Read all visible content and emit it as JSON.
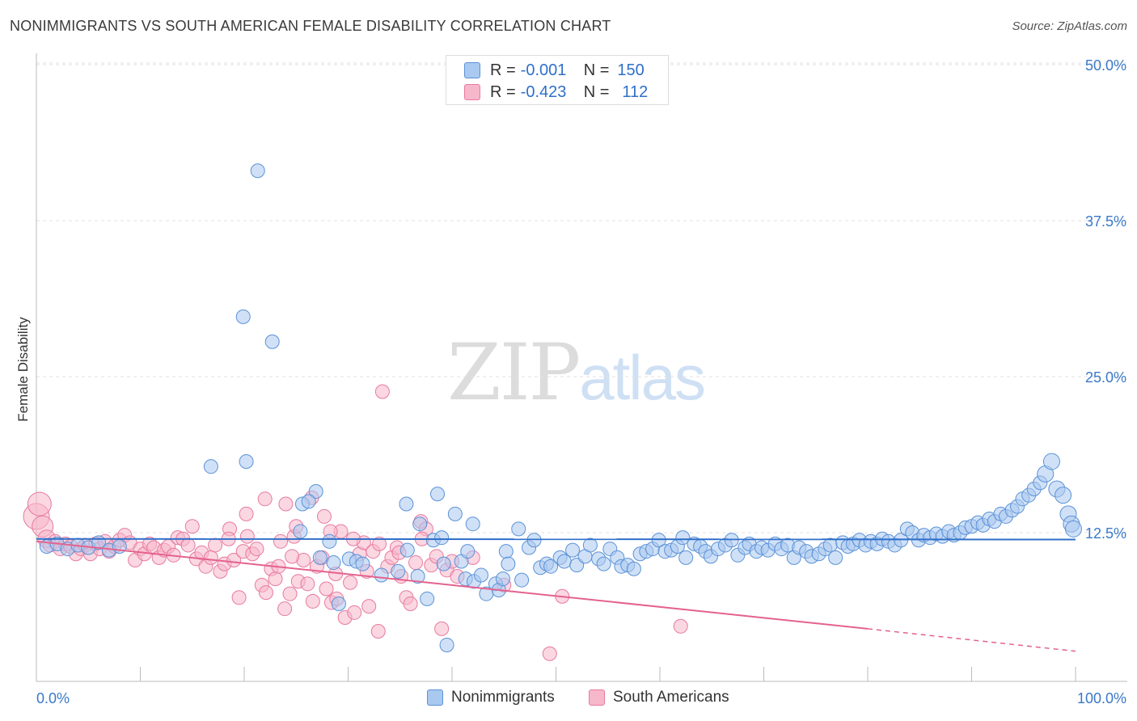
{
  "title": "NONIMMIGRANTS VS SOUTH AMERICAN FEMALE DISABILITY CORRELATION CHART",
  "source": "Source: ZipAtlas.com",
  "colors": {
    "blue_fill": "#a9c9f0",
    "blue_stroke": "#5b92d6",
    "blue_line": "#2f6fc9",
    "pink_fill": "#f7b7cb",
    "pink_stroke": "#e77aa0",
    "pink_line": "#e4628e",
    "axis_text": "#3b78c9",
    "grid": "#e2e2e2"
  },
  "legend_top": {
    "rows": [
      {
        "label": "R =",
        "r_value": "-0.001",
        "n_label": "N =",
        "n_value": "150"
      },
      {
        "label": "R =",
        "r_value": "-0.423",
        "n_label": "N =",
        "n_value": "112"
      }
    ]
  },
  "legend_bottom": [
    "Nonimmigrants",
    "South Americans"
  ],
  "watermark": {
    "zip": "ZIP",
    "atlas": "atlas"
  },
  "chart_data": {
    "type": "scatter",
    "title": "NONIMMIGRANTS VS SOUTH AMERICAN FEMALE DISABILITY CORRELATION CHART",
    "xlabel": "",
    "ylabel": "Female Disability",
    "xlim": [
      0,
      100
    ],
    "ylim": [
      0,
      50
    ],
    "x_tick_labels": [
      "0.0%",
      "100.0%"
    ],
    "y_ticks": [
      12.5,
      25.0,
      37.5,
      50.0
    ],
    "y_tick_labels": [
      "12.5%",
      "25.0%",
      "37.5%",
      "50.0%"
    ],
    "legend": [
      "Nonimmigrants",
      "South Americans"
    ],
    "series": [
      {
        "name": "Nonimmigrants",
        "R": -0.001,
        "N": 150,
        "trend": {
          "x": [
            0,
            100
          ],
          "y": [
            12.0,
            11.95
          ]
        },
        "points": [
          [
            1,
            11.4
          ],
          [
            2,
            11.6
          ],
          [
            3,
            11.2
          ],
          [
            4,
            11.5
          ],
          [
            5,
            11.3
          ],
          [
            6,
            11.7
          ],
          [
            7,
            11.1
          ],
          [
            8,
            11.4
          ],
          [
            16.8,
            17.8
          ],
          [
            21.3,
            41.5
          ],
          [
            19.9,
            29.8
          ],
          [
            22.7,
            27.8
          ],
          [
            20.2,
            18.2
          ],
          [
            26.9,
            15.8
          ],
          [
            28.2,
            11.8
          ],
          [
            25.6,
            14.8
          ],
          [
            25.4,
            12.6
          ],
          [
            26.2,
            15.0
          ],
          [
            27.3,
            10.5
          ],
          [
            28.6,
            10.1
          ],
          [
            29.1,
            6.8
          ],
          [
            30.1,
            10.4
          ],
          [
            30.8,
            10.2
          ],
          [
            31.4,
            10.0
          ],
          [
            33.2,
            9.1
          ],
          [
            34.8,
            9.4
          ],
          [
            35.7,
            11.1
          ],
          [
            36.7,
            9.0
          ],
          [
            36.9,
            13.2
          ],
          [
            35.6,
            14.8
          ],
          [
            37.6,
            7.2
          ],
          [
            38.2,
            11.9
          ],
          [
            39.0,
            12.1
          ],
          [
            39.2,
            10.0
          ],
          [
            38.6,
            15.6
          ],
          [
            39.5,
            3.5
          ],
          [
            40.3,
            14.0
          ],
          [
            40.9,
            10.2
          ],
          [
            41.5,
            11.0
          ],
          [
            41.3,
            8.8
          ],
          [
            42.1,
            8.6
          ],
          [
            42.0,
            13.2
          ],
          [
            42.8,
            9.1
          ],
          [
            43.3,
            7.6
          ],
          [
            44.2,
            8.4
          ],
          [
            44.5,
            7.9
          ],
          [
            44.9,
            8.8
          ],
          [
            45.2,
            11.0
          ],
          [
            45.4,
            10.0
          ],
          [
            46.4,
            12.8
          ],
          [
            46.7,
            8.7
          ],
          [
            47.4,
            11.3
          ],
          [
            47.9,
            11.9
          ],
          [
            48.5,
            9.7
          ],
          [
            49.1,
            10.0
          ],
          [
            49.5,
            9.8
          ],
          [
            50.4,
            10.5
          ],
          [
            50.8,
            10.2
          ],
          [
            51.6,
            11.1
          ],
          [
            52.0,
            9.9
          ],
          [
            52.8,
            10.6
          ],
          [
            53.3,
            11.5
          ],
          [
            54.1,
            10.4
          ],
          [
            54.6,
            10.0
          ],
          [
            55.2,
            11.2
          ],
          [
            55.9,
            10.5
          ],
          [
            56.3,
            9.8
          ],
          [
            56.9,
            9.9
          ],
          [
            57.5,
            9.6
          ],
          [
            58.1,
            10.8
          ],
          [
            58.7,
            11.0
          ],
          [
            59.3,
            11.2
          ],
          [
            59.9,
            11.9
          ],
          [
            60.5,
            11.0
          ],
          [
            61.1,
            11.1
          ],
          [
            61.7,
            11.4
          ],
          [
            62.2,
            12.1
          ],
          [
            62.5,
            10.5
          ],
          [
            63.3,
            11.6
          ],
          [
            63.9,
            11.4
          ],
          [
            64.4,
            11.0
          ],
          [
            64.9,
            10.6
          ],
          [
            65.6,
            11.2
          ],
          [
            66.3,
            11.5
          ],
          [
            66.9,
            11.9
          ],
          [
            67.5,
            10.7
          ],
          [
            68.2,
            11.3
          ],
          [
            68.6,
            11.6
          ],
          [
            69.3,
            11.0
          ],
          [
            69.8,
            11.3
          ],
          [
            70.4,
            11.1
          ],
          [
            71.1,
            11.6
          ],
          [
            71.7,
            11.2
          ],
          [
            72.3,
            11.5
          ],
          [
            72.9,
            10.5
          ],
          [
            73.4,
            11.3
          ],
          [
            74.1,
            11.0
          ],
          [
            74.6,
            10.6
          ],
          [
            75.3,
            10.8
          ],
          [
            75.9,
            11.2
          ],
          [
            76.4,
            11.5
          ],
          [
            76.9,
            10.5
          ],
          [
            77.6,
            11.7
          ],
          [
            78.1,
            11.4
          ],
          [
            78.6,
            11.6
          ],
          [
            79.2,
            11.9
          ],
          [
            79.8,
            11.5
          ],
          [
            80.3,
            11.8
          ],
          [
            80.9,
            11.6
          ],
          [
            81.4,
            12.0
          ],
          [
            82.0,
            11.8
          ],
          [
            82.6,
            11.5
          ],
          [
            83.2,
            11.9
          ],
          [
            83.8,
            12.8
          ],
          [
            84.3,
            12.5
          ],
          [
            84.9,
            11.9
          ],
          [
            85.4,
            12.3
          ],
          [
            86.0,
            12.1
          ],
          [
            86.6,
            12.4
          ],
          [
            87.2,
            12.2
          ],
          [
            87.8,
            12.6
          ],
          [
            88.3,
            12.3
          ],
          [
            88.9,
            12.5
          ],
          [
            89.4,
            12.9
          ],
          [
            90.0,
            13.0
          ],
          [
            90.6,
            13.3
          ],
          [
            91.1,
            13.1
          ],
          [
            91.7,
            13.6
          ],
          [
            92.2,
            13.4
          ],
          [
            92.8,
            14.0
          ],
          [
            93.3,
            13.8
          ],
          [
            93.9,
            14.3
          ],
          [
            94.4,
            14.6
          ],
          [
            94.9,
            15.2
          ],
          [
            95.5,
            15.5
          ],
          [
            96.0,
            16.0
          ],
          [
            96.6,
            16.5
          ],
          [
            97.1,
            17.2
          ],
          [
            97.7,
            18.2
          ],
          [
            98.2,
            16.0
          ],
          [
            98.8,
            15.5
          ],
          [
            99.3,
            14.0
          ],
          [
            99.6,
            13.2
          ],
          [
            99.8,
            12.8
          ]
        ]
      },
      {
        "name": "South Americans",
        "R": -0.423,
        "N": 112,
        "trend": {
          "x": [
            0,
            80
          ],
          "y": [
            11.8,
            4.8
          ]
        },
        "trend_dashed": {
          "x": [
            80,
            100
          ],
          "y": [
            4.8,
            3.0
          ]
        },
        "points": [
          [
            0,
            13.8
          ],
          [
            0.3,
            14.8
          ],
          [
            0.6,
            13.0
          ],
          [
            1.0,
            12.0
          ],
          [
            1.3,
            11.5
          ],
          [
            1.8,
            11.8
          ],
          [
            2.3,
            11.2
          ],
          [
            2.8,
            11.6
          ],
          [
            3.3,
            11.4
          ],
          [
            3.8,
            10.8
          ],
          [
            4.3,
            11.2
          ],
          [
            4.7,
            11.5
          ],
          [
            5.2,
            10.8
          ],
          [
            5.7,
            11.6
          ],
          [
            6.1,
            11.2
          ],
          [
            6.6,
            11.8
          ],
          [
            7.0,
            11.0
          ],
          [
            7.5,
            11.4
          ],
          [
            8.0,
            11.9
          ],
          [
            8.5,
            12.3
          ],
          [
            9.0,
            11.7
          ],
          [
            9.5,
            10.3
          ],
          [
            10.0,
            11.2
          ],
          [
            10.4,
            10.8
          ],
          [
            10.9,
            11.6
          ],
          [
            11.3,
            11.3
          ],
          [
            11.8,
            10.5
          ],
          [
            12.3,
            11.1
          ],
          [
            12.7,
            11.4
          ],
          [
            13.2,
            10.7
          ],
          [
            13.6,
            12.1
          ],
          [
            14.1,
            12.0
          ],
          [
            14.6,
            11.5
          ],
          [
            15.0,
            13.0
          ],
          [
            15.4,
            10.4
          ],
          [
            15.9,
            10.9
          ],
          [
            16.3,
            9.8
          ],
          [
            16.8,
            10.5
          ],
          [
            17.2,
            11.5
          ],
          [
            17.7,
            9.4
          ],
          [
            18.1,
            10.0
          ],
          [
            18.6,
            12.8
          ],
          [
            19.0,
            10.3
          ],
          [
            19.5,
            7.3
          ],
          [
            19.9,
            11.0
          ],
          [
            20.3,
            12.2
          ],
          [
            20.8,
            10.8
          ],
          [
            21.2,
            11.2
          ],
          [
            21.7,
            8.3
          ],
          [
            22.1,
            7.7
          ],
          [
            22.6,
            9.6
          ],
          [
            23.0,
            8.8
          ],
          [
            23.5,
            11.8
          ],
          [
            23.9,
            6.4
          ],
          [
            24.4,
            7.6
          ],
          [
            24.8,
            12.2
          ],
          [
            25.2,
            8.6
          ],
          [
            25.7,
            10.3
          ],
          [
            26.1,
            8.4
          ],
          [
            26.6,
            7.0
          ],
          [
            27.0,
            9.8
          ],
          [
            27.5,
            10.5
          ],
          [
            27.9,
            8.0
          ],
          [
            28.4,
            6.9
          ],
          [
            28.8,
            9.2
          ],
          [
            29.3,
            12.6
          ],
          [
            29.7,
            5.7
          ],
          [
            30.2,
            8.5
          ],
          [
            30.6,
            6.1
          ],
          [
            31.1,
            10.8
          ],
          [
            31.5,
            11.7
          ],
          [
            32.0,
            6.6
          ],
          [
            32.4,
            11.0
          ],
          [
            32.9,
            4.6
          ],
          [
            33.3,
            23.8
          ],
          [
            33.8,
            9.8
          ],
          [
            34.2,
            10.5
          ],
          [
            34.7,
            11.3
          ],
          [
            35.1,
            9.0
          ],
          [
            35.6,
            7.3
          ],
          [
            36.0,
            6.8
          ],
          [
            36.5,
            10.1
          ],
          [
            37.0,
            13.4
          ],
          [
            37.5,
            12.8
          ],
          [
            38.0,
            9.9
          ],
          [
            38.5,
            10.6
          ],
          [
            39.0,
            4.8
          ],
          [
            39.5,
            9.5
          ],
          [
            40.0,
            10.2
          ],
          [
            22.0,
            15.2
          ],
          [
            24.0,
            14.8
          ],
          [
            25.0,
            13.0
          ],
          [
            26.5,
            15.3
          ],
          [
            27.7,
            13.8
          ],
          [
            28.3,
            12.6
          ],
          [
            30.5,
            12.0
          ],
          [
            33.0,
            11.6
          ],
          [
            37.1,
            12.0
          ],
          [
            40.5,
            9.0
          ],
          [
            42.0,
            10.5
          ],
          [
            45.0,
            8.3
          ],
          [
            49.4,
            2.8
          ],
          [
            50.6,
            7.4
          ],
          [
            62.0,
            5.0
          ],
          [
            20.2,
            14.0
          ],
          [
            18.5,
            12.0
          ],
          [
            23.3,
            9.8
          ],
          [
            24.6,
            10.6
          ],
          [
            31.8,
            9.4
          ],
          [
            28.9,
            7.2
          ],
          [
            34.9,
            10.9
          ]
        ]
      }
    ]
  }
}
